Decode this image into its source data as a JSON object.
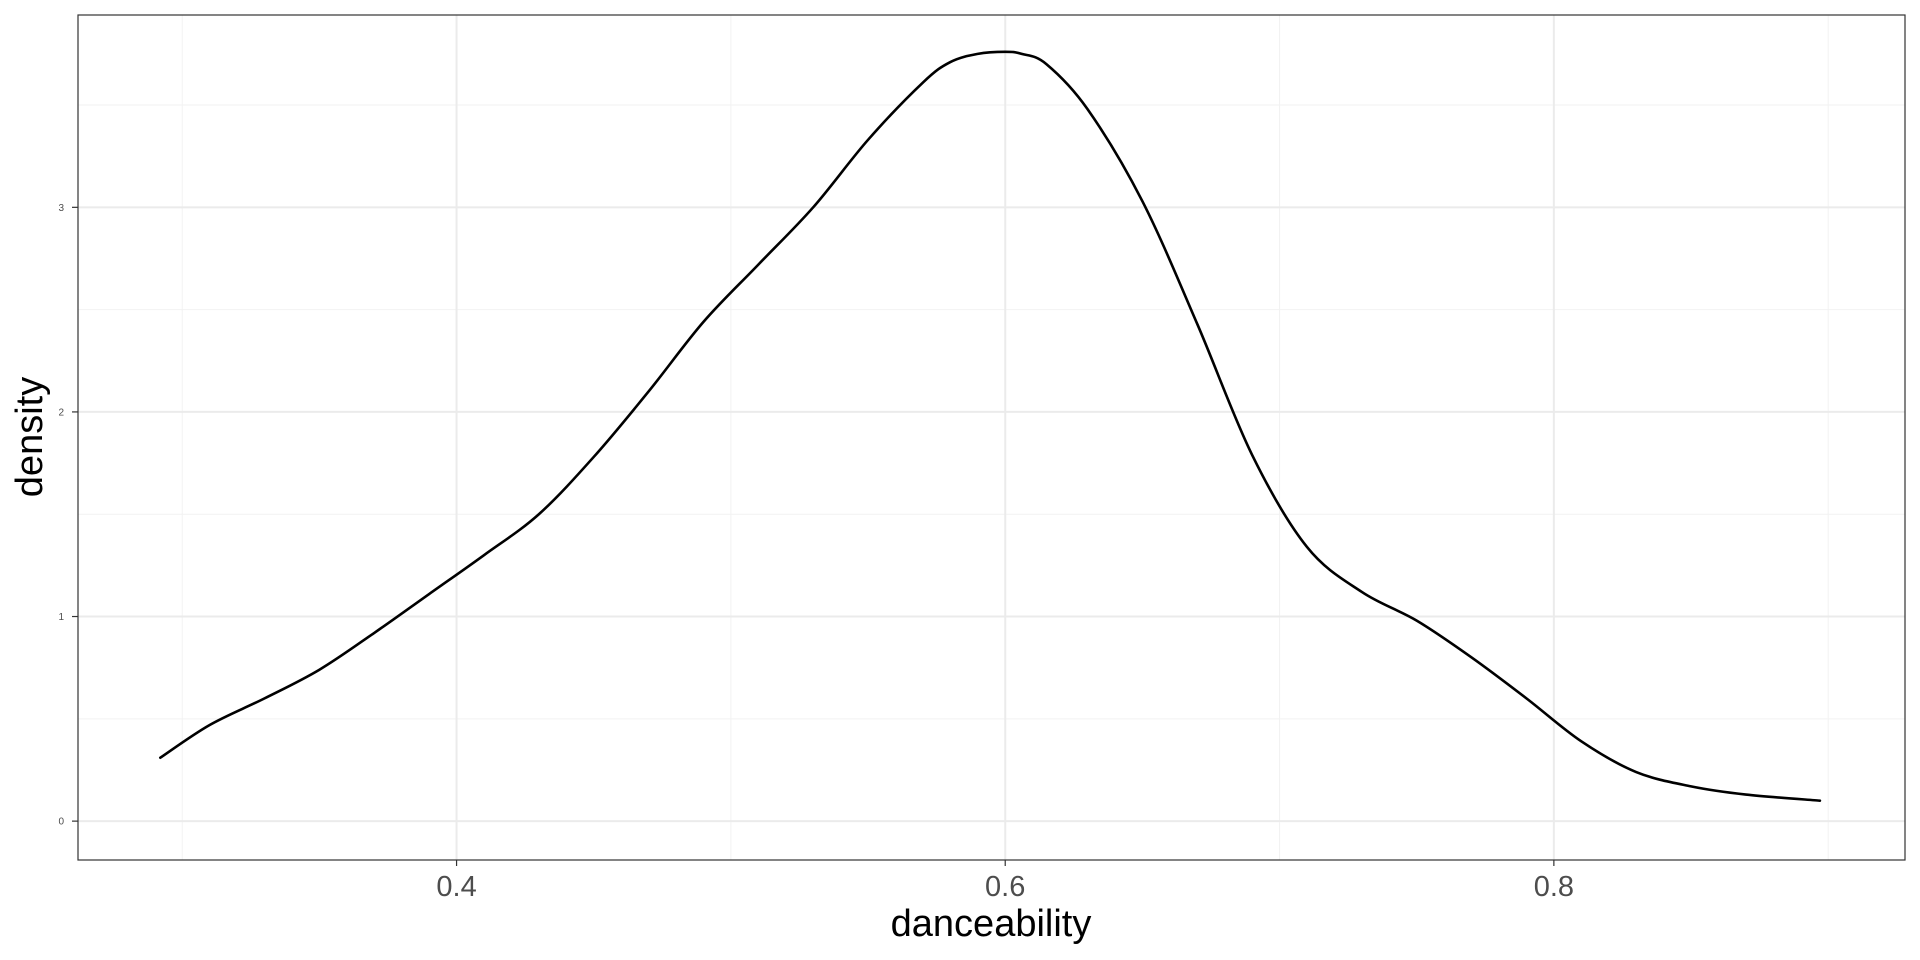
{
  "chart_data": {
    "type": "line",
    "xlabel": "danceability",
    "ylabel": "density",
    "xlim": [
      0.262,
      0.928
    ],
    "ylim": [
      -0.19,
      3.94
    ],
    "x_ticks": [
      0.4,
      0.6,
      0.8
    ],
    "x_tick_labels": [
      "0.4",
      "0.6",
      "0.8"
    ],
    "x_minor_ticks": [
      0.3,
      0.5,
      0.7,
      0.9
    ],
    "y_ticks": [
      0,
      1,
      2,
      3
    ],
    "y_tick_labels": [
      "0",
      "1",
      "2",
      "3"
    ],
    "y_minor_ticks": [
      0.5,
      1.5,
      2.5,
      3.5
    ],
    "grid": true,
    "series": [
      {
        "x": [
          0.292,
          0.31,
          0.33,
          0.35,
          0.37,
          0.39,
          0.41,
          0.43,
          0.45,
          0.47,
          0.49,
          0.51,
          0.53,
          0.55,
          0.57,
          0.58,
          0.59,
          0.6,
          0.606,
          0.615,
          0.63,
          0.65,
          0.67,
          0.69,
          0.71,
          0.73,
          0.75,
          0.77,
          0.79,
          0.81,
          0.83,
          0.85,
          0.87,
          0.897
        ],
        "y": [
          0.31,
          0.47,
          0.6,
          0.74,
          0.92,
          1.11,
          1.3,
          1.5,
          1.78,
          2.1,
          2.44,
          2.72,
          3.0,
          3.33,
          3.61,
          3.71,
          3.75,
          3.76,
          3.75,
          3.7,
          3.48,
          3.03,
          2.43,
          1.79,
          1.34,
          1.12,
          0.98,
          0.8,
          0.6,
          0.39,
          0.24,
          0.17,
          0.13,
          0.1
        ]
      }
    ]
  }
}
